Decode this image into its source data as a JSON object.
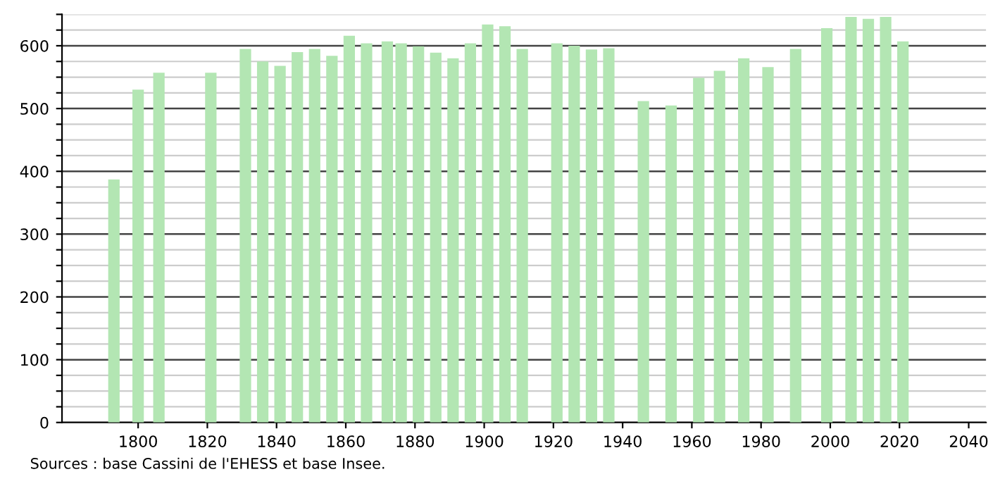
{
  "chart_data": {
    "type": "bar",
    "x": [
      1793,
      1800,
      1806,
      1821,
      1831,
      1836,
      1841,
      1846,
      1851,
      1856,
      1861,
      1866,
      1872,
      1876,
      1881,
      1886,
      1891,
      1896,
      1901,
      1906,
      1911,
      1921,
      1926,
      1931,
      1936,
      1946,
      1954,
      1962,
      1968,
      1975,
      1982,
      1990,
      1999,
      2006,
      2011,
      2016,
      2021
    ],
    "values": [
      387,
      530,
      557,
      557,
      595,
      575,
      568,
      590,
      595,
      584,
      616,
      604,
      607,
      604,
      599,
      589,
      580,
      604,
      634,
      631,
      595,
      604,
      600,
      594,
      596,
      512,
      505,
      549,
      560,
      580,
      566,
      595,
      628,
      646,
      643,
      646,
      607
    ],
    "color": "#b3e6b3",
    "xlim": [
      1778,
      2045
    ],
    "xticks": [
      1800,
      1820,
      1840,
      1860,
      1880,
      1900,
      1920,
      1940,
      1960,
      1980,
      2000,
      2020,
      2040
    ],
    "ylim": [
      0,
      650
    ],
    "yticks": [
      0,
      {
        "value": 25,
        "label": null
      },
      {
        "value": 50,
        "label": null
      },
      {
        "value": 75,
        "label": null
      },
      100,
      {
        "value": 125,
        "label": null
      },
      {
        "value": 150,
        "label": null
      },
      {
        "value": 175,
        "label": null
      },
      200,
      {
        "value": 225,
        "label": null
      },
      {
        "value": 250,
        "label": null
      },
      {
        "value": 275,
        "label": null
      },
      300,
      {
        "value": 325,
        "label": null
      },
      {
        "value": 350,
        "label": null
      },
      {
        "value": 375,
        "label": null
      },
      400,
      {
        "value": 425,
        "label": null
      },
      {
        "value": 450,
        "label": null
      },
      {
        "value": 475,
        "label": null
      },
      500,
      {
        "value": 525,
        "label": null
      },
      {
        "value": 550,
        "label": null
      },
      {
        "value": 575,
        "label": null
      },
      600,
      {
        "value": 625,
        "label": null
      },
      {
        "value": 650,
        "label": null
      }
    ],
    "grid": "y",
    "annotations": [
      "Sources : base Cassini de l'EHESS et base Insee."
    ]
  }
}
